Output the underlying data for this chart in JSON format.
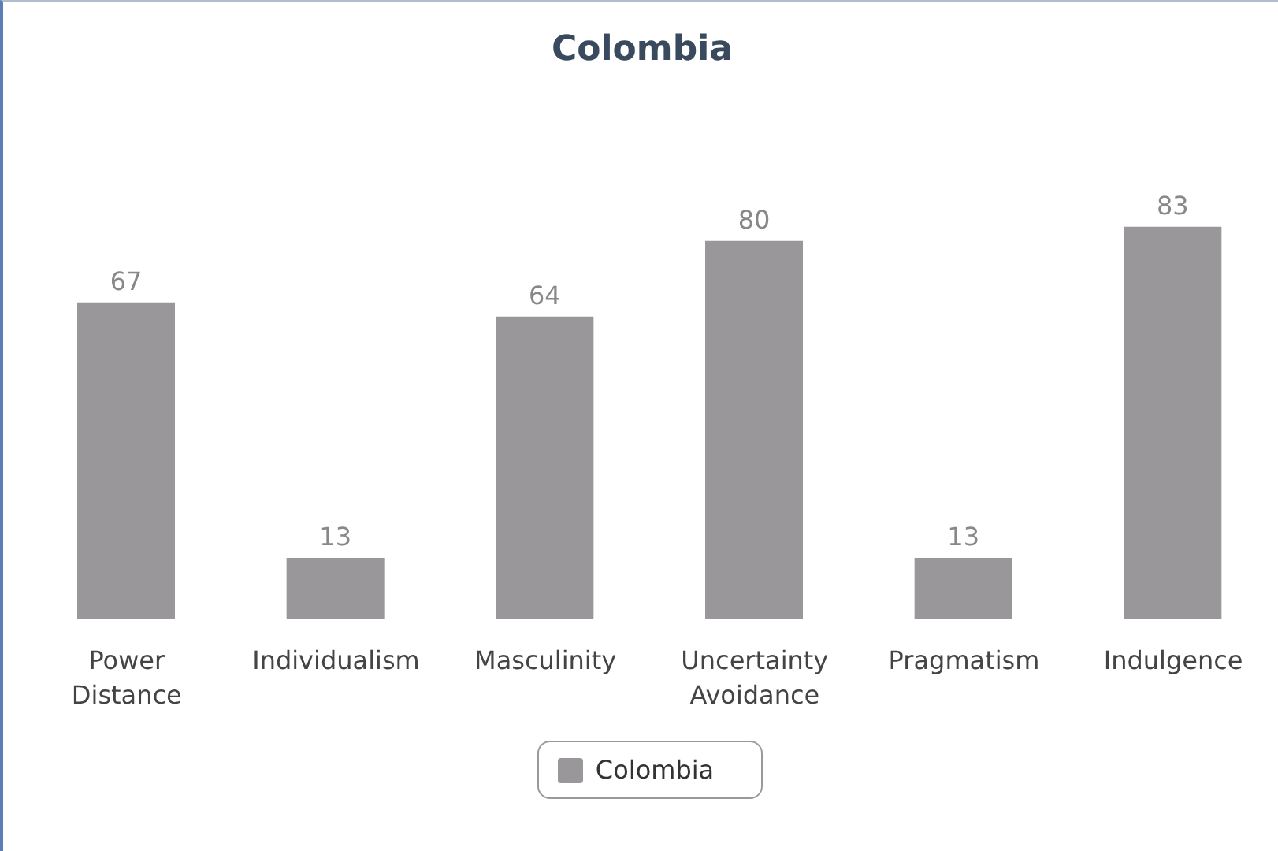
{
  "chart_data": {
    "type": "bar",
    "title": "Colombia",
    "categories": [
      "Power Distance",
      "Individualism",
      "Masculinity",
      "Uncertainty Avoidance",
      "Pragmatism",
      "Indulgence"
    ],
    "series": [
      {
        "name": "Colombia",
        "color": "#999799",
        "values": [
          67,
          13,
          64,
          80,
          13,
          83
        ]
      }
    ],
    "data_labels": true,
    "legend": "bottom",
    "grid": false
  }
}
